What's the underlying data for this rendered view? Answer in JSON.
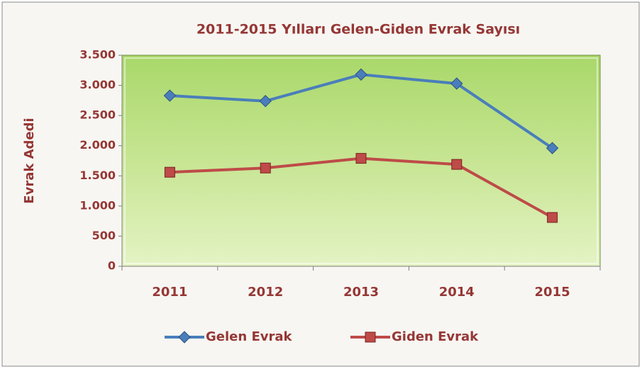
{
  "chart_data": {
    "type": "line",
    "title": "2011-2015 Yılları Gelen-Giden Evrak Sayısı",
    "y_label": "Evrak Adedi",
    "categories": [
      "2011",
      "2012",
      "2013",
      "2014",
      "2015"
    ],
    "series": [
      {
        "name": "Gelen Evrak",
        "color": "#4a7ebb",
        "marker": "diamond",
        "values": [
          2830,
          2740,
          3180,
          3030,
          1960
        ]
      },
      {
        "name": "Giden Evrak",
        "color": "#be4b48",
        "marker": "square",
        "values": [
          1560,
          1630,
          1790,
          1690,
          810
        ]
      }
    ],
    "ylim": [
      0,
      3500
    ],
    "yticks": [
      {
        "value": 0,
        "label": "0"
      },
      {
        "value": 500,
        "label": "500"
      },
      {
        "value": 1000,
        "label": "1.000"
      },
      {
        "value": 1500,
        "label": "1.500"
      },
      {
        "value": 2000,
        "label": "2.000"
      },
      {
        "value": 2500,
        "label": "2.500"
      },
      {
        "value": 3000,
        "label": "3.000"
      },
      {
        "value": 3500,
        "label": "3.500"
      }
    ],
    "legend": "bottom"
  }
}
